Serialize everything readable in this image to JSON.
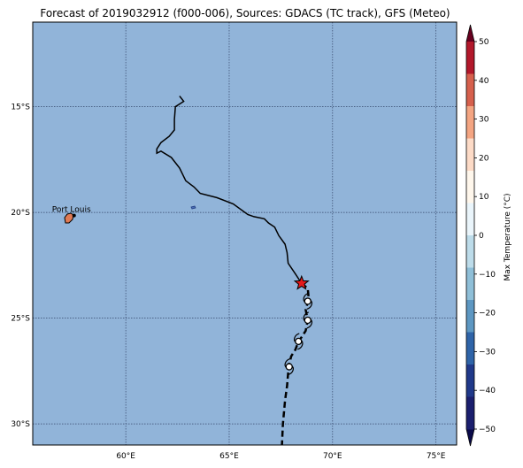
{
  "title": "Forecast of 2019032912 (f000-006), Sources: GDACS (TC track), GFS (Meteo)",
  "map": {
    "ocean_color": "#91b4d9",
    "lon_range": [
      55.5,
      76
    ],
    "lat_range": [
      -31,
      -11
    ],
    "lon_ticks": [
      {
        "value": 60,
        "label": "60°E"
      },
      {
        "value": 65,
        "label": "65°E"
      },
      {
        "value": 70,
        "label": "70°E"
      },
      {
        "value": 75,
        "label": "75°E"
      }
    ],
    "lat_ticks": [
      {
        "value": -15,
        "label": "15°S"
      },
      {
        "value": -20,
        "label": "20°S"
      },
      {
        "value": -25,
        "label": "25°S"
      },
      {
        "value": -30,
        "label": "30°S"
      }
    ],
    "city": {
      "name": "Port Louis",
      "lon": 57.5,
      "lat": -20.15
    },
    "past_track": [
      [
        62.6,
        -14.5
      ],
      [
        62.8,
        -14.75
      ],
      [
        62.4,
        -15.0
      ],
      [
        62.35,
        -15.6
      ],
      [
        62.35,
        -16.1
      ],
      [
        62.1,
        -16.4
      ],
      [
        61.7,
        -16.7
      ],
      [
        61.5,
        -17.0
      ],
      [
        61.5,
        -17.2
      ],
      [
        61.7,
        -17.1
      ],
      [
        62.2,
        -17.4
      ],
      [
        62.6,
        -17.9
      ],
      [
        62.9,
        -18.5
      ],
      [
        63.3,
        -18.8
      ],
      [
        63.6,
        -19.1
      ],
      [
        64.4,
        -19.3
      ],
      [
        65.2,
        -19.6
      ],
      [
        65.9,
        -20.1
      ],
      [
        66.2,
        -20.2
      ],
      [
        66.7,
        -20.3
      ],
      [
        66.9,
        -20.5
      ],
      [
        67.2,
        -20.7
      ],
      [
        67.4,
        -21.1
      ],
      [
        67.7,
        -21.5
      ],
      [
        67.8,
        -21.9
      ],
      [
        67.85,
        -22.4
      ],
      [
        68.2,
        -22.9
      ],
      [
        68.4,
        -23.2
      ],
      [
        68.5,
        -23.35
      ]
    ],
    "forecast_track": [
      [
        68.5,
        -23.35
      ],
      [
        68.8,
        -23.6
      ],
      [
        68.85,
        -24.1
      ],
      [
        68.7,
        -24.6
      ],
      [
        68.8,
        -25.1
      ],
      [
        68.7,
        -25.6
      ],
      [
        68.5,
        -25.9
      ],
      [
        68.35,
        -26.1
      ],
      [
        68.2,
        -26.5
      ],
      [
        68.0,
        -26.8
      ],
      [
        67.9,
        -27.2
      ],
      [
        67.85,
        -27.6
      ],
      [
        67.8,
        -28.2
      ],
      [
        67.7,
        -28.9
      ],
      [
        67.6,
        -30.0
      ],
      [
        67.55,
        -31.0
      ]
    ],
    "current_position": {
      "lon": 68.5,
      "lat": -23.35,
      "marker": "red-star"
    },
    "forecast_points": [
      {
        "lon": 68.8,
        "lat": -24.2
      },
      {
        "lon": 68.8,
        "lat": -25.1
      },
      {
        "lon": 68.35,
        "lat": -26.1
      },
      {
        "lon": 67.9,
        "lat": -27.3
      }
    ]
  },
  "colorbar": {
    "label": "Max Temperature (°C)",
    "ticks": [
      "50",
      "40",
      "30",
      "20",
      "10",
      "0",
      "−10",
      "−20",
      "−30",
      "−40",
      "−50"
    ],
    "colors": [
      "#67001f",
      "#b2182b",
      "#d6604d",
      "#f4a582",
      "#fddbc7",
      "#fff7ec",
      "#eaf5fb",
      "#bddcea",
      "#8fbfd8",
      "#5d97c2",
      "#2f64a8",
      "#20398a",
      "#1b1f6e",
      "#0a0a4a"
    ]
  }
}
